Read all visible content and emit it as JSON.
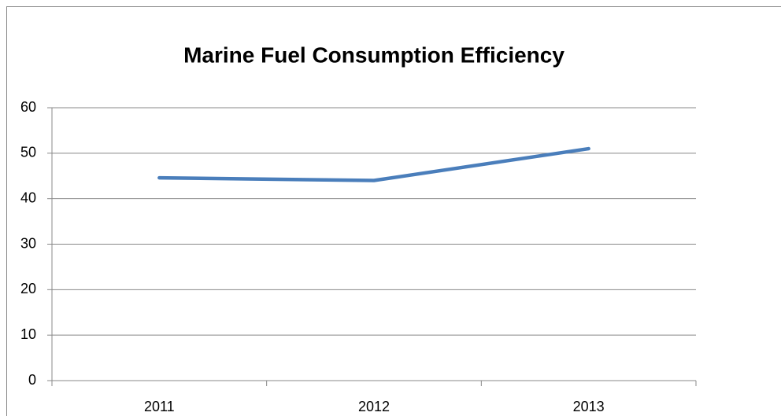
{
  "chart_data": {
    "type": "line",
    "title": "Marine Fuel Consumption Efficiency",
    "categories": [
      "2011",
      "2012",
      "2013"
    ],
    "values": [
      44.6,
      44,
      51
    ],
    "color": "#4a7ebb",
    "ylim": [
      0,
      60
    ],
    "yticks": [
      0,
      10,
      20,
      30,
      40,
      50,
      60
    ],
    "grid": true
  }
}
